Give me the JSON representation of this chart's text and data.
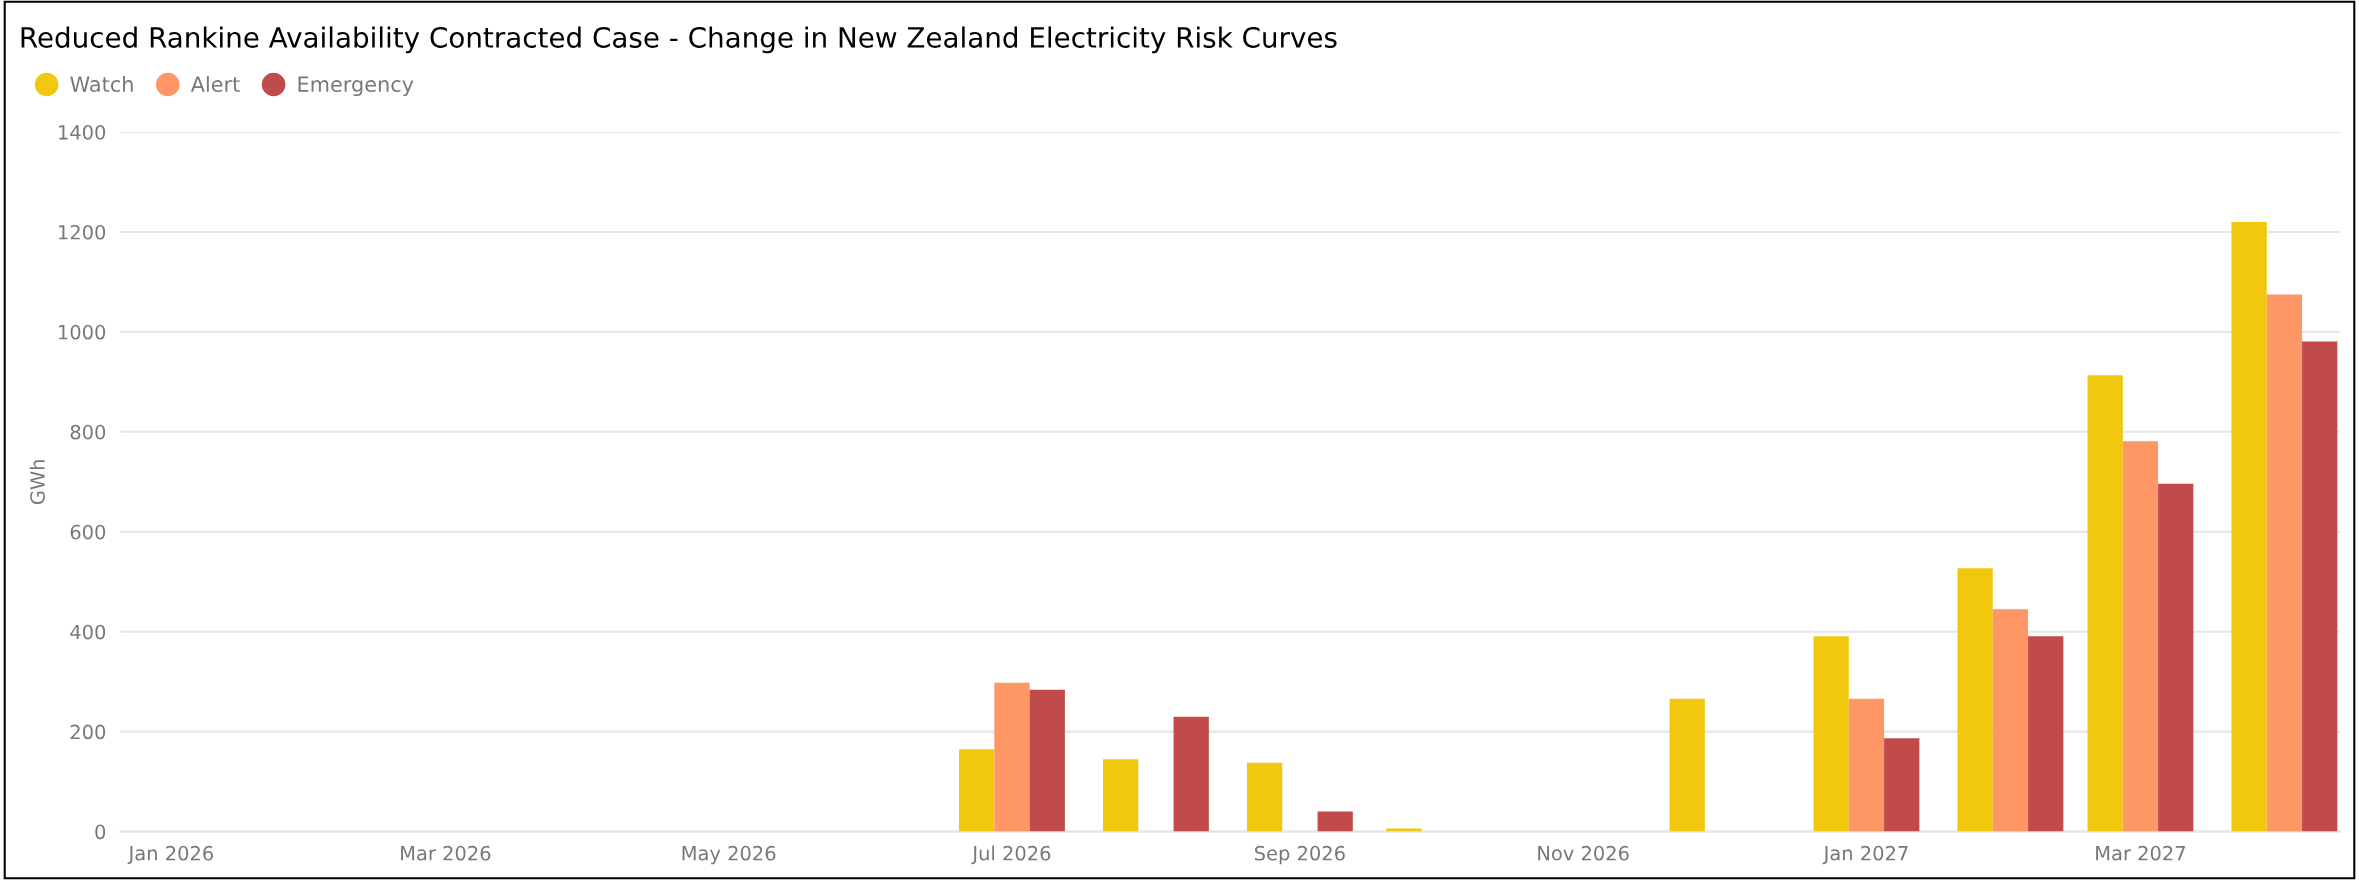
{
  "chart_data": {
    "type": "bar",
    "title": "Reduced Rankine Availability Contracted Case - Change in New Zealand Electricity Risk Curves",
    "ylabel": "GWh",
    "x": [
      "2026-07",
      "2026-08",
      "2026-09",
      "2026-10",
      "2026-12",
      "2027-01",
      "2027-02",
      "2027-03",
      "2027-04"
    ],
    "series": [
      {
        "name": "Watch",
        "color": "#f2c80f",
        "values": [
          165,
          145,
          138,
          6,
          266,
          391,
          527,
          913,
          1220
        ]
      },
      {
        "name": "Alert",
        "color": "#fe9666",
        "values": [
          298,
          null,
          null,
          null,
          null,
          266,
          445,
          781,
          1075
        ]
      },
      {
        "name": "Emergency",
        "color": "#c04b4a",
        "values": [
          284,
          230,
          40,
          null,
          null,
          187,
          391,
          696,
          981
        ]
      }
    ],
    "xlim": [
      "2025-12-21",
      "2027-04-13"
    ],
    "xticks": [
      {
        "value": "2026-01",
        "label": "Jan 2026"
      },
      {
        "value": "2026-03",
        "label": "Mar 2026"
      },
      {
        "value": "2026-05",
        "label": "May 2026"
      },
      {
        "value": "2026-07",
        "label": "Jul 2026"
      },
      {
        "value": "2026-09",
        "label": "Sep 2026"
      },
      {
        "value": "2026-11",
        "label": "Nov 2026"
      },
      {
        "value": "2027-01",
        "label": "Jan 2027"
      },
      {
        "value": "2027-03",
        "label": "Mar 2027"
      }
    ],
    "ylim": [
      0,
      1400
    ],
    "yticks": [
      0,
      200,
      400,
      600,
      800,
      1000,
      1200,
      1400
    ],
    "grid": "y",
    "legend": "top left"
  }
}
